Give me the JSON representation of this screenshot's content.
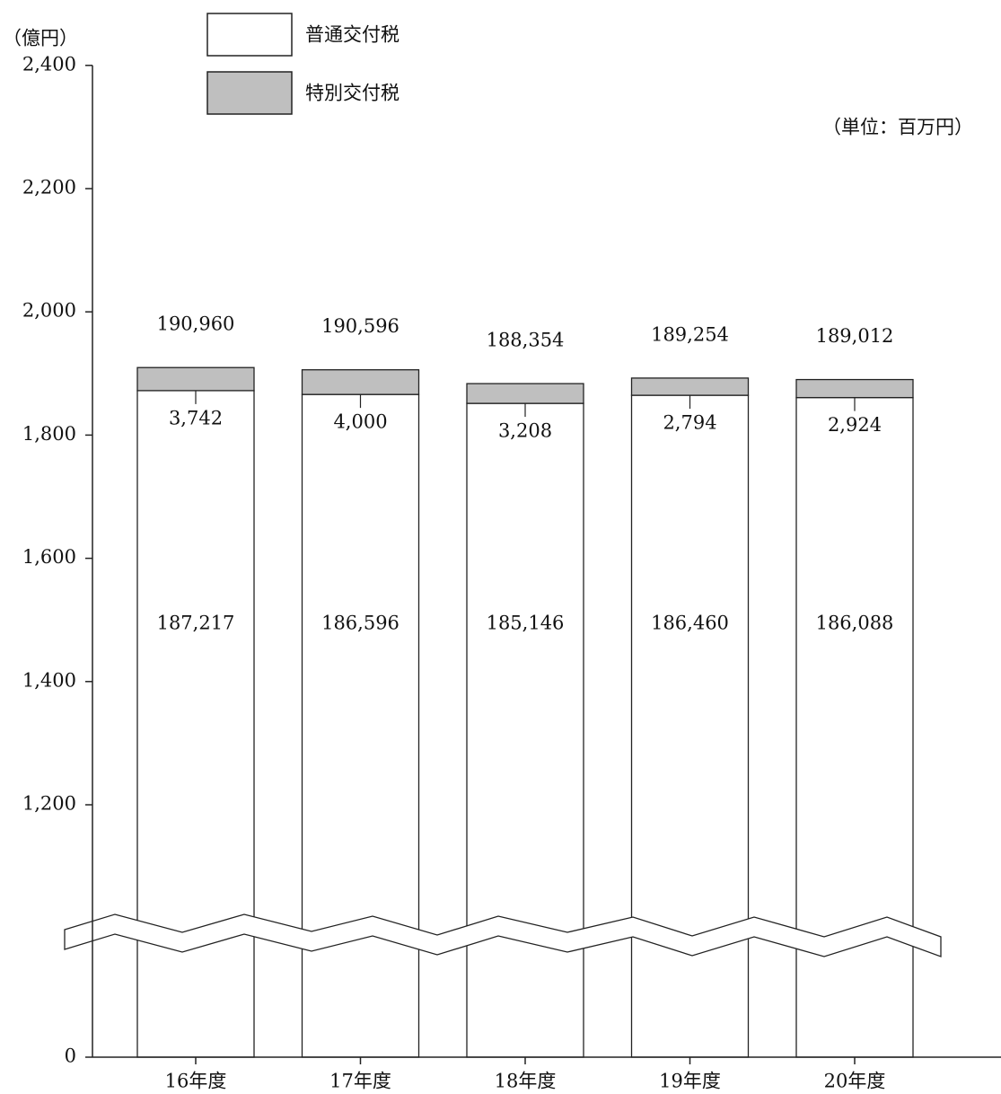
{
  "chart_data": {
    "type": "stacked_bar",
    "y_axis_label": "（億円）",
    "unit_note": "（単位：百万円）",
    "categories": [
      "16年度",
      "17年度",
      "18年度",
      "19年度",
      "20年度"
    ],
    "series": [
      {
        "name": "普通交付税",
        "color": "#ffffff",
        "values": [
          1872.17,
          1865.96,
          1851.46,
          1864.6,
          1860.88
        ],
        "value_labels": [
          "187,217",
          "186,596",
          "185,146",
          "186,460",
          "186,088"
        ]
      },
      {
        "name": "特別交付税",
        "color": "#bfbfbf",
        "values": [
          37.42,
          40.0,
          32.08,
          27.94,
          29.24
        ],
        "value_labels": [
          "3,742",
          "4,000",
          "3,208",
          "2,794",
          "2,924"
        ]
      }
    ],
    "totals": {
      "values": [
        1909.6,
        1905.96,
        1883.54,
        1892.54,
        1890.12
      ],
      "value_labels": [
        "190,960",
        "190,596",
        "188,354",
        "189,254",
        "189,012"
      ]
    },
    "ylim": [
      0,
      2400
    ],
    "yticks": [
      0,
      {
        "value": 1200,
        "label": "1,200"
      },
      {
        "value": 1400,
        "label": "1,400"
      },
      {
        "value": 1600,
        "label": "1,600"
      },
      {
        "value": 1800,
        "label": "1,800"
      },
      {
        "value": 2000,
        "label": "2,000"
      },
      {
        "value": 2200,
        "label": "2,200"
      },
      {
        "value": 2400,
        "label": "2,400"
      }
    ],
    "axis_break": true
  }
}
